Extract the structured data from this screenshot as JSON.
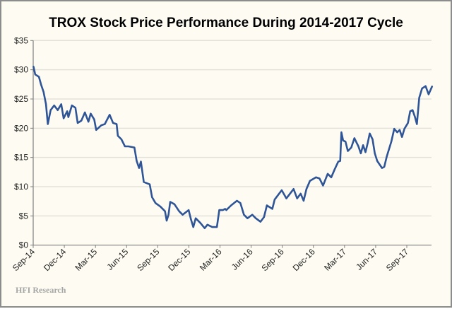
{
  "chart_data": {
    "type": "line",
    "title": "TROX Stock Price Performance During 2014-2017 Cycle",
    "xlabel": "",
    "ylabel": "",
    "x_units": "months since Sep-14",
    "ylim": [
      0,
      35
    ],
    "y_ticks": [
      0,
      5,
      10,
      15,
      20,
      25,
      30,
      35
    ],
    "y_tick_labels": [
      "$0",
      "$5",
      "$10",
      "$15",
      "$20",
      "$25",
      "$30",
      "$35"
    ],
    "x_ticks": [
      0,
      3,
      6,
      9,
      12,
      15,
      18,
      21,
      24,
      27,
      30,
      33,
      36
    ],
    "x_tick_labels": [
      "Sep-14",
      "Dec-14",
      "Mar-15",
      "Jun-15",
      "Sep-15",
      "Dec-15",
      "Mar-16",
      "Jun-16",
      "Sep-16",
      "Dec-16",
      "Mar-17",
      "Jun-17",
      "Sep-17"
    ],
    "xlim": [
      0,
      38.45
    ],
    "grid": "horizontal",
    "legend": "none",
    "series": [
      {
        "name": "TROX",
        "color": "#2F5597",
        "points": [
          [
            0.02,
            30.6
          ],
          [
            0.2,
            29.2
          ],
          [
            0.55,
            28.8
          ],
          [
            0.77,
            27.4
          ],
          [
            1.0,
            26.2
          ],
          [
            1.23,
            24.1
          ],
          [
            1.41,
            20.7
          ],
          [
            1.68,
            23.1
          ],
          [
            2.02,
            23.9
          ],
          [
            2.36,
            23.1
          ],
          [
            2.7,
            24.1
          ],
          [
            2.93,
            21.7
          ],
          [
            3.27,
            22.9
          ],
          [
            3.39,
            21.9
          ],
          [
            3.73,
            23.9
          ],
          [
            4.07,
            23.5
          ],
          [
            4.29,
            20.9
          ],
          [
            4.64,
            21.3
          ],
          [
            4.98,
            22.7
          ],
          [
            5.32,
            21.1
          ],
          [
            5.54,
            22.5
          ],
          [
            5.88,
            21.5
          ],
          [
            6.07,
            19.7
          ],
          [
            6.56,
            20.5
          ],
          [
            6.9,
            20.7
          ],
          [
            7.36,
            22.3
          ],
          [
            7.7,
            20.9
          ],
          [
            8.04,
            20.7
          ],
          [
            8.16,
            18.7
          ],
          [
            8.5,
            18.1
          ],
          [
            8.84,
            16.9
          ],
          [
            9.18,
            16.9
          ],
          [
            9.75,
            16.7
          ],
          [
            9.97,
            14.4
          ],
          [
            10.2,
            13.2
          ],
          [
            10.38,
            14.3
          ],
          [
            10.66,
            10.8
          ],
          [
            11.23,
            10.4
          ],
          [
            11.45,
            8.2
          ],
          [
            11.79,
            7.2
          ],
          [
            12.25,
            6.6
          ],
          [
            12.7,
            5.8
          ],
          [
            12.86,
            4.2
          ],
          [
            13.04,
            5.2
          ],
          [
            13.2,
            7.4
          ],
          [
            13.61,
            7.0
          ],
          [
            14.06,
            5.8
          ],
          [
            14.4,
            5.2
          ],
          [
            14.98,
            6.0
          ],
          [
            15.2,
            4.4
          ],
          [
            15.43,
            3.1
          ],
          [
            15.66,
            4.6
          ],
          [
            16.11,
            3.8
          ],
          [
            16.52,
            2.9
          ],
          [
            16.79,
            3.5
          ],
          [
            17.25,
            3.1
          ],
          [
            17.7,
            3.1
          ],
          [
            17.93,
            6.0
          ],
          [
            18.27,
            6.0
          ],
          [
            18.5,
            6.2
          ],
          [
            18.61,
            6.0
          ],
          [
            19.07,
            6.8
          ],
          [
            19.63,
            7.6
          ],
          [
            19.97,
            7.2
          ],
          [
            20.31,
            5.2
          ],
          [
            20.65,
            4.6
          ],
          [
            21.11,
            5.2
          ],
          [
            21.45,
            4.6
          ],
          [
            21.9,
            4.0
          ],
          [
            22.24,
            4.8
          ],
          [
            22.52,
            6.8
          ],
          [
            23.04,
            6.2
          ],
          [
            23.27,
            7.8
          ],
          [
            23.95,
            9.4
          ],
          [
            24.4,
            8.0
          ],
          [
            25.09,
            9.6
          ],
          [
            25.43,
            8.0
          ],
          [
            25.77,
            8.8
          ],
          [
            26.06,
            7.6
          ],
          [
            26.33,
            9.6
          ],
          [
            26.67,
            11.0
          ],
          [
            27.25,
            11.6
          ],
          [
            27.59,
            11.4
          ],
          [
            27.93,
            10.2
          ],
          [
            28.38,
            12.2
          ],
          [
            28.72,
            11.6
          ],
          [
            29.06,
            13.0
          ],
          [
            29.4,
            14.3
          ],
          [
            29.58,
            14.4
          ],
          [
            29.7,
            19.3
          ],
          [
            29.86,
            17.9
          ],
          [
            30.09,
            17.7
          ],
          [
            30.32,
            16.1
          ],
          [
            30.65,
            16.7
          ],
          [
            30.95,
            18.3
          ],
          [
            31.34,
            16.9
          ],
          [
            31.57,
            15.7
          ],
          [
            31.79,
            17.1
          ],
          [
            32.02,
            15.9
          ],
          [
            32.24,
            17.5
          ],
          [
            32.43,
            19.1
          ],
          [
            32.7,
            18.1
          ],
          [
            32.92,
            15.7
          ],
          [
            33.15,
            14.4
          ],
          [
            33.61,
            13.2
          ],
          [
            33.83,
            13.4
          ],
          [
            34.06,
            15.1
          ],
          [
            34.51,
            17.7
          ],
          [
            34.79,
            19.9
          ],
          [
            35.08,
            19.3
          ],
          [
            35.31,
            19.7
          ],
          [
            35.54,
            18.5
          ],
          [
            35.77,
            19.9
          ],
          [
            36.11,
            20.9
          ],
          [
            36.33,
            22.9
          ],
          [
            36.56,
            23.1
          ],
          [
            36.79,
            21.9
          ],
          [
            36.97,
            20.7
          ],
          [
            37.2,
            25.2
          ],
          [
            37.47,
            26.8
          ],
          [
            37.81,
            27.2
          ],
          [
            38.1,
            25.8
          ],
          [
            38.45,
            27.2
          ]
        ]
      }
    ],
    "annotations": [
      "HFI Research"
    ]
  },
  "colors": {
    "background": "#FEFCF2",
    "frame": "#8c8c8c",
    "grid": "#e3e1da",
    "axis": "#7f7f7f"
  }
}
